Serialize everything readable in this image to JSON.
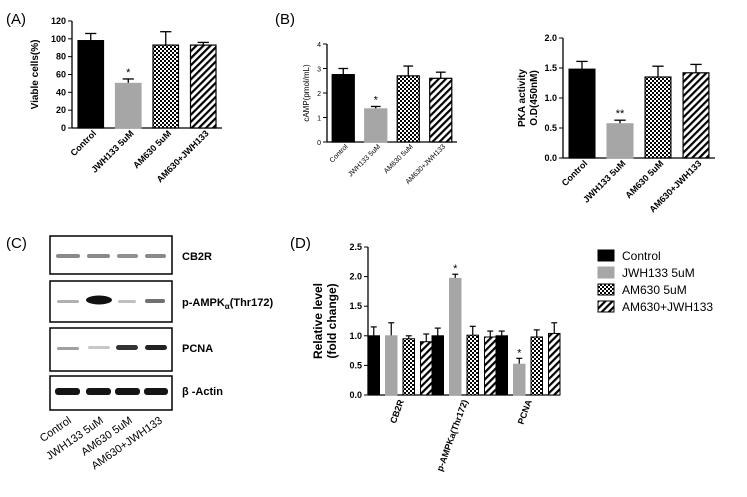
{
  "panel_labels": [
    "(A)",
    "(B)",
    "(C)",
    "(D)"
  ],
  "colors": {
    "black": "#000000",
    "grey": "#a6a6a6"
  },
  "patterns": [
    "solid-black",
    "solid-grey",
    "checker",
    "diagonal-stripes"
  ],
  "chart_data": [
    {
      "id": "A",
      "type": "bar",
      "ylabel": "Viable cells(%)",
      "ylim": [
        0,
        120
      ],
      "yticks": [
        "0",
        "20",
        "40",
        "60",
        "80",
        "100",
        "120"
      ],
      "categories": [
        "Control",
        "JWH133 5uM",
        "AM630 5uM",
        "AM630+JWH133"
      ],
      "values": [
        98,
        50,
        93,
        93
      ],
      "errors": [
        8,
        5,
        15,
        3
      ],
      "annotations": [
        "",
        "*",
        "",
        ""
      ]
    },
    {
      "id": "B1",
      "type": "bar",
      "ylabel": "cAMP(pmol/mL)",
      "ylim": [
        0,
        4
      ],
      "yticks": [
        "0",
        "1",
        "2",
        "3",
        "4"
      ],
      "categories": [
        "Control",
        "JWH133 5uM",
        "AM630 5uM",
        "AM630+JWH133"
      ],
      "values": [
        2.75,
        1.35,
        2.7,
        2.6
      ],
      "errors": [
        0.25,
        0.1,
        0.4,
        0.25
      ],
      "annotations": [
        "",
        "*",
        "",
        ""
      ]
    },
    {
      "id": "B2",
      "type": "bar",
      "ylabel_lines": [
        "PKA activity",
        "O.D(450nM)"
      ],
      "ylim": [
        0,
        2
      ],
      "yticks": [
        "0.0",
        "0.5",
        "1.0",
        "1.5",
        "2.0"
      ],
      "categories": [
        "Control",
        "JWH133 5uM",
        "AM630 5uM",
        "AM630+JWH133"
      ],
      "values": [
        1.48,
        0.57,
        1.35,
        1.42
      ],
      "errors": [
        0.13,
        0.06,
        0.18,
        0.14
      ],
      "annotations": [
        "",
        "**",
        "",
        ""
      ]
    },
    {
      "id": "D",
      "type": "bar",
      "ylabel_lines": [
        "Relative level",
        "(fold change)"
      ],
      "ylim": [
        0,
        2.5
      ],
      "yticks": [
        "0.0",
        "0.5",
        "1.0",
        "1.5",
        "2.0",
        "2.5"
      ],
      "categories": [
        "CB2R",
        "p-AMPKa(Thr172)",
        "PCNA"
      ],
      "series": [
        {
          "name": "Control",
          "values": [
            1.0,
            1.0,
            1.0
          ],
          "errors": [
            0.15,
            0.13,
            0.08
          ],
          "annotations": [
            "",
            "",
            ""
          ]
        },
        {
          "name": "JWH133 5uM",
          "values": [
            1.0,
            1.97,
            0.52
          ],
          "errors": [
            0.22,
            0.07,
            0.1
          ],
          "annotations": [
            "",
            "*",
            "*"
          ]
        },
        {
          "name": "AM630 5uM",
          "values": [
            0.95,
            1.01,
            0.98
          ],
          "errors": [
            0.05,
            0.15,
            0.12
          ],
          "annotations": [
            "",
            "",
            ""
          ]
        },
        {
          "name": "AM630+JWH133",
          "values": [
            0.9,
            0.98,
            1.04
          ],
          "errors": [
            0.13,
            0.1,
            0.18
          ],
          "annotations": [
            "",
            "",
            ""
          ]
        }
      ]
    }
  ],
  "blot": {
    "rows": [
      "CB2R",
      "β -Actin"
    ],
    "row_ampk_prefix": "p-AMPK",
    "row_ampk_sub": "α",
    "row_ampk_suffix": "(Thr172)",
    "row_pcna": "PCNA",
    "lanes": [
      "Control",
      "JWH133 5uM",
      "AM630 5uM",
      "AM630+JWH133"
    ]
  }
}
